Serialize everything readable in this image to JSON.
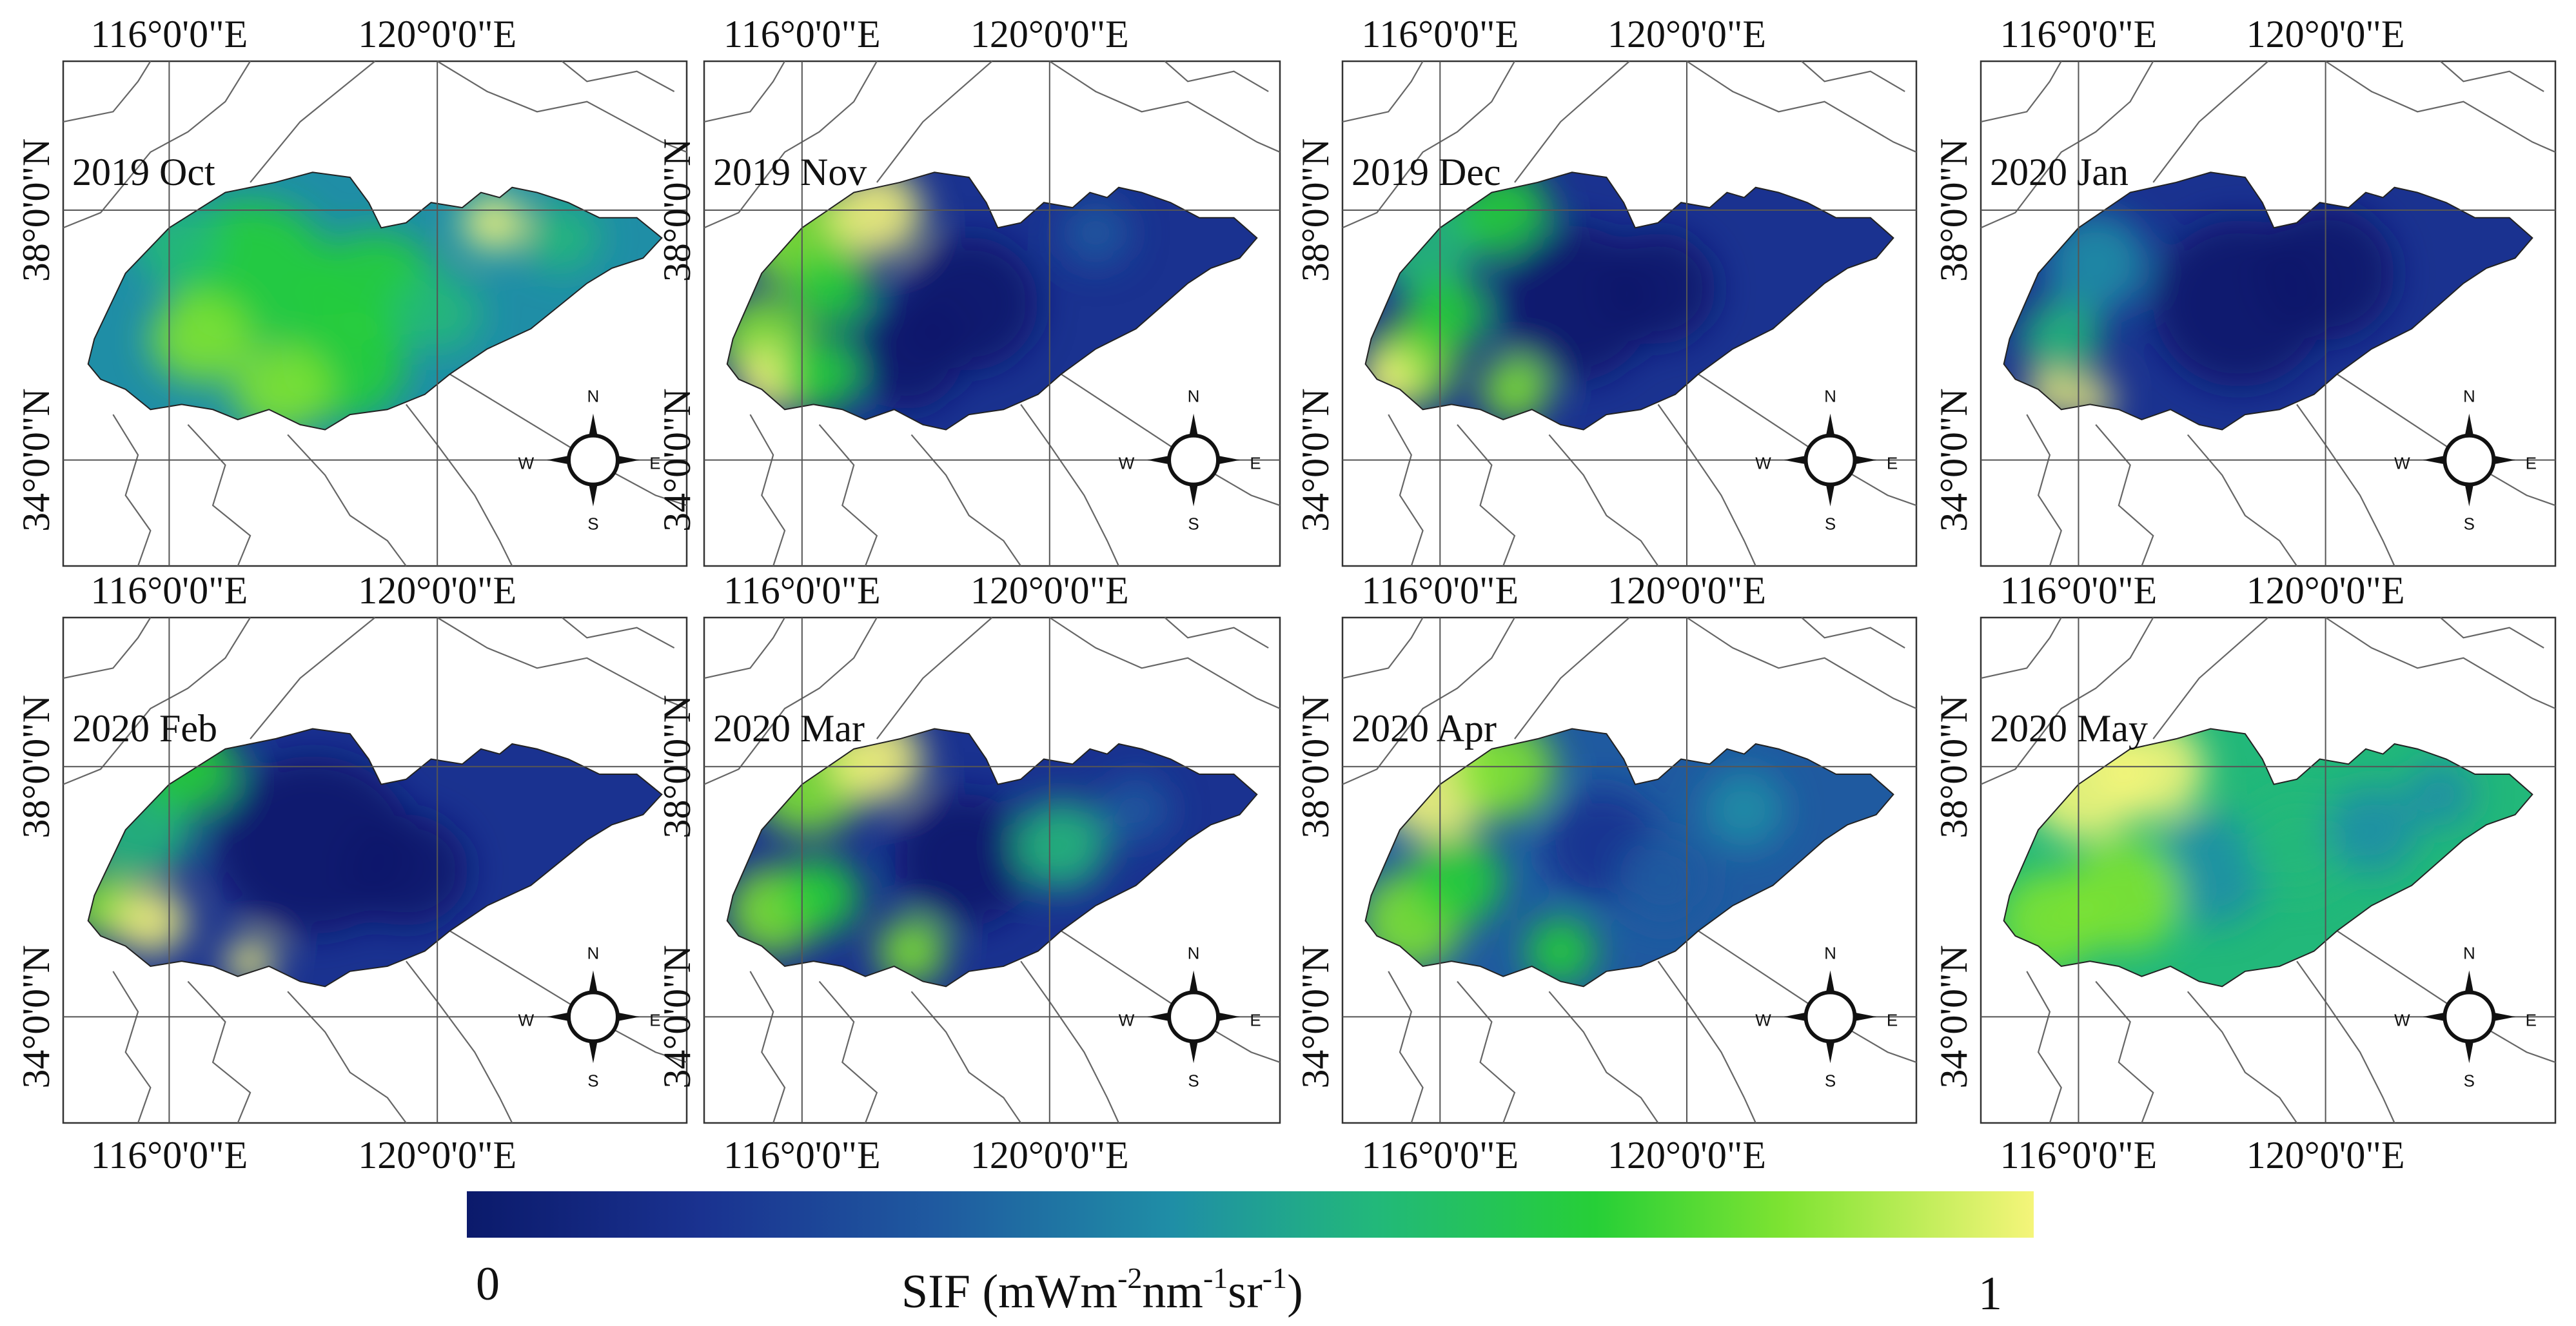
{
  "panels": [
    {
      "label": "2019 Oct"
    },
    {
      "label": "2019 Nov"
    },
    {
      "label": "2019 Dec"
    },
    {
      "label": "2020 Jan"
    },
    {
      "label": "2020 Feb"
    },
    {
      "label": "2020 Mar"
    },
    {
      "label": "2020 Apr"
    },
    {
      "label": "2020 May"
    }
  ],
  "axes": {
    "lon_labels": [
      "116°0'0\"E",
      "120°0'0\"E"
    ],
    "lat_labels": [
      "38°0'0\"N",
      "34°0'0\"N"
    ]
  },
  "compass": {
    "n": "N",
    "s": "S",
    "e": "E",
    "w": "W"
  },
  "legend": {
    "min_label": "0",
    "max_label": "1",
    "title_parts": [
      "SIF (mWm",
      "-2",
      "nm",
      "-1",
      "sr",
      "-1",
      ")"
    ],
    "colors": [
      "#0b1a6b",
      "#1a3290",
      "#1f5aa0",
      "#1f8ea6",
      "#22b87a",
      "#26cf37",
      "#7ee332",
      "#f5f57a"
    ]
  }
}
